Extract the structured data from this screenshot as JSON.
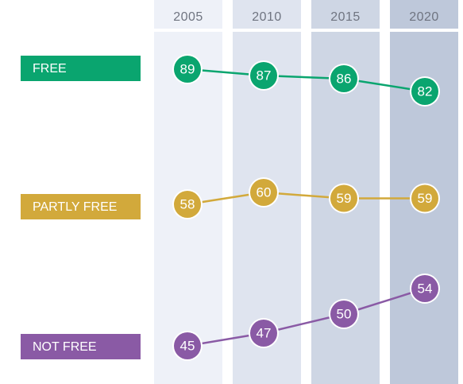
{
  "chart_data": {
    "type": "line",
    "x": [
      "2005",
      "2010",
      "2015",
      "2020"
    ],
    "series": [
      {
        "name": "FREE",
        "values": [
          89,
          87,
          86,
          82
        ],
        "color": "#0aa56f"
      },
      {
        "name": "PARTLY FREE",
        "values": [
          58,
          60,
          59,
          59
        ],
        "color": "#d2a93b"
      },
      {
        "name": "NOT FREE",
        "values": [
          45,
          47,
          50,
          54
        ],
        "color": "#8a5aa5"
      }
    ],
    "column_colors": [
      "#eef1f8",
      "#dfe4ef",
      "#ced6e4",
      "#bec8da"
    ],
    "grid": false,
    "legend": "left"
  }
}
